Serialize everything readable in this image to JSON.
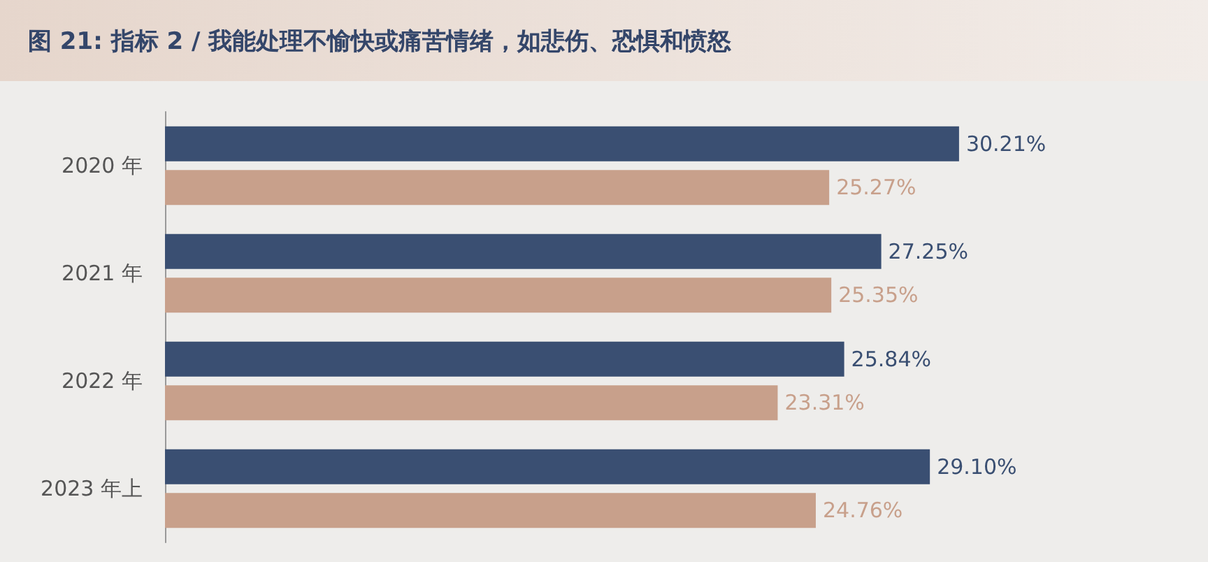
{
  "chart_data": {
    "type": "bar",
    "orientation": "horizontal",
    "title": "图 21: 指标 2 / 我能处理不愉快或痛苦情绪，如悲伤、恐惧和愤怒",
    "categories": [
      "2020 年",
      "2021 年",
      "2022 年",
      "2023 年上"
    ],
    "series": [
      {
        "color": "#3a4f72",
        "values": [
          30.21,
          27.25,
          25.84,
          29.1
        ],
        "value_labels": [
          "30.21%",
          "27.25%",
          "25.84%",
          "29.10%"
        ]
      },
      {
        "color": "#c8a08b",
        "values": [
          25.27,
          25.35,
          23.31,
          24.76
        ],
        "value_labels": [
          "25.27%",
          "25.35%",
          "23.31%",
          "24.76%"
        ]
      }
    ],
    "tick_labels": "y"
  }
}
